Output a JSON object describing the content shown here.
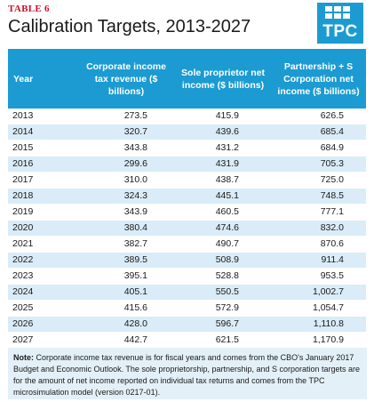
{
  "header": {
    "table_label": "TABLE 6",
    "title": "Calibration Targets, 2013-2027",
    "logo_text": "TPC"
  },
  "table": {
    "columns": [
      "Year",
      "Corporate income tax revenue ($ billions)",
      "Sole proprietor net income ($ billions)",
      "Partnership + S Corporation net income ($ billions)"
    ],
    "rows": [
      {
        "year": "2013",
        "corp": "273.5",
        "sole": "415.9",
        "part": "626.5"
      },
      {
        "year": "2014",
        "corp": "320.7",
        "sole": "439.6",
        "part": "685.4"
      },
      {
        "year": "2015",
        "corp": "343.8",
        "sole": "431.2",
        "part": "684.9"
      },
      {
        "year": "2016",
        "corp": "299.6",
        "sole": "431.9",
        "part": "705.3"
      },
      {
        "year": "2017",
        "corp": "310.0",
        "sole": "438.7",
        "part": "725.0"
      },
      {
        "year": "2018",
        "corp": "324.3",
        "sole": "445.1",
        "part": "748.5"
      },
      {
        "year": "2019",
        "corp": "343.9",
        "sole": "460.5",
        "part": "777.1"
      },
      {
        "year": "2020",
        "corp": "380.4",
        "sole": "474.6",
        "part": "832.0"
      },
      {
        "year": "2021",
        "corp": "382.7",
        "sole": "490.7",
        "part": "870.6"
      },
      {
        "year": "2022",
        "corp": "389.5",
        "sole": "508.9",
        "part": "911.4"
      },
      {
        "year": "2023",
        "corp": "395.1",
        "sole": "528.8",
        "part": "953.5"
      },
      {
        "year": "2024",
        "corp": "405.1",
        "sole": "550.5",
        "part": "1,002.7"
      },
      {
        "year": "2025",
        "corp": "415.6",
        "sole": "572.9",
        "part": "1,054.7"
      },
      {
        "year": "2026",
        "corp": "428.0",
        "sole": "596.7",
        "part": "1,110.8"
      },
      {
        "year": "2027",
        "corp": "442.7",
        "sole": "621.5",
        "part": "1,170.9"
      }
    ]
  },
  "note": {
    "label": "Note:",
    "text": " Corporate income tax revenue is for fiscal years and comes from the CBO's January 2017 Budget and Economic Outlook. The sole proprietorship, partnership, and S corporation targets are for the amount of net income reported on individual tax returns and comes from the TPC microsimulation model (version 0217-01)."
  },
  "colors": {
    "accent_red": "#c8102e",
    "header_blue": "#1b9bd1",
    "stripe_blue": "#d9ecf7",
    "note_bg": "#e3f0f8"
  }
}
